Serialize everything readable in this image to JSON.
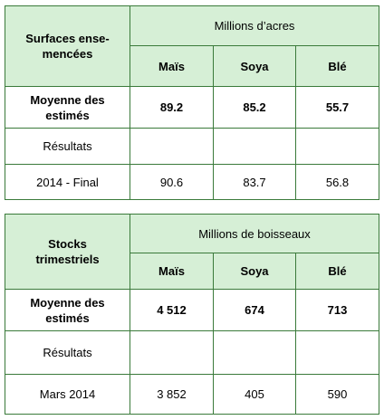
{
  "table1": {
    "corner": "Surfaces ense-\nmencées",
    "unit": "Millions d’acres",
    "headers": [
      "Maïs",
      "Soya",
      "Blé"
    ],
    "rows": [
      {
        "label": "Moyenne des\nestimés",
        "values": [
          "89.2",
          "85.2",
          "55.7"
        ],
        "bold": true
      },
      {
        "label": "Résultats",
        "values": [
          "",
          "",
          ""
        ],
        "bold": false
      },
      {
        "label": "2014 - Final",
        "values": [
          "90.6",
          "83.7",
          "56.8"
        ],
        "bold": false
      }
    ]
  },
  "table2": {
    "corner": "Stocks\ntrimestriels",
    "unit": "Millions de boisseaux",
    "headers": [
      "Maïs",
      "Soya",
      "Blé"
    ],
    "rows": [
      {
        "label": "Moyenne des\nestimés",
        "values": [
          "4 512",
          "674",
          "713"
        ],
        "bold": true
      },
      {
        "label": "Résultats",
        "values": [
          "",
          "",
          ""
        ],
        "bold": false
      },
      {
        "label": "Mars 2014",
        "values": [
          "3 852",
          "405",
          "590"
        ],
        "bold": false
      }
    ]
  },
  "colors": {
    "header_fill": "#d6efd6",
    "border": "#3a7a3a"
  }
}
